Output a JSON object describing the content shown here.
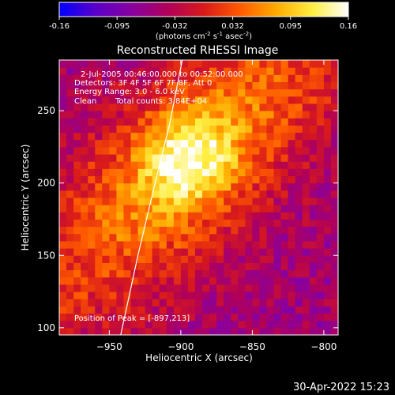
{
  "chart_data": {
    "type": "heatmap",
    "title": "Reconstructed RHESSI Image",
    "xlabel": "Heliocentric X (arcsec)",
    "ylabel": "Heliocentric Y (arcsec)",
    "xlim": [
      -985,
      -790
    ],
    "ylim": [
      95,
      285
    ],
    "xticks": [
      -950,
      -900,
      -850,
      -800
    ],
    "yticks": [
      100,
      150,
      200,
      250
    ],
    "colorbar": {
      "ticks": [
        "-0.16",
        "-0.095",
        "-0.032",
        "0.032",
        "0.095",
        "0.16"
      ],
      "unit_prefix": "(photons cm",
      "unit_exp1": "-2",
      "unit_mid": " s",
      "unit_exp2": "-1",
      "unit_mid2": " asec",
      "unit_exp3": "-2",
      "unit_suffix": ")",
      "colors": [
        "#0000ff",
        "#5a00c8",
        "#8800a0",
        "#b0005a",
        "#d81a1a",
        "#ff5a00",
        "#ffaa00",
        "#ffee40",
        "#ffffff"
      ]
    },
    "annotations": {
      "time": "2-Jul-2005 00:46:00.000 to 00:52:00.000",
      "detectors": "Detectors: 3F 4F 5F 6F 7F 8F, Att 0",
      "energy": "Energy Range: 3.0 - 6.0 keV",
      "method": "Clean",
      "counts": "Total counts: 3.84E+04",
      "peak": "Position of Peak = [-897,213]"
    },
    "peak_position": [
      -897,
      213
    ],
    "limb_curve": [
      [
        -942,
        95
      ],
      [
        -930,
        150
      ],
      [
        -918,
        200
      ],
      [
        -908,
        240
      ],
      [
        -899,
        285
      ]
    ]
  },
  "footer": {
    "date": "30-Apr-2022 15:23"
  }
}
